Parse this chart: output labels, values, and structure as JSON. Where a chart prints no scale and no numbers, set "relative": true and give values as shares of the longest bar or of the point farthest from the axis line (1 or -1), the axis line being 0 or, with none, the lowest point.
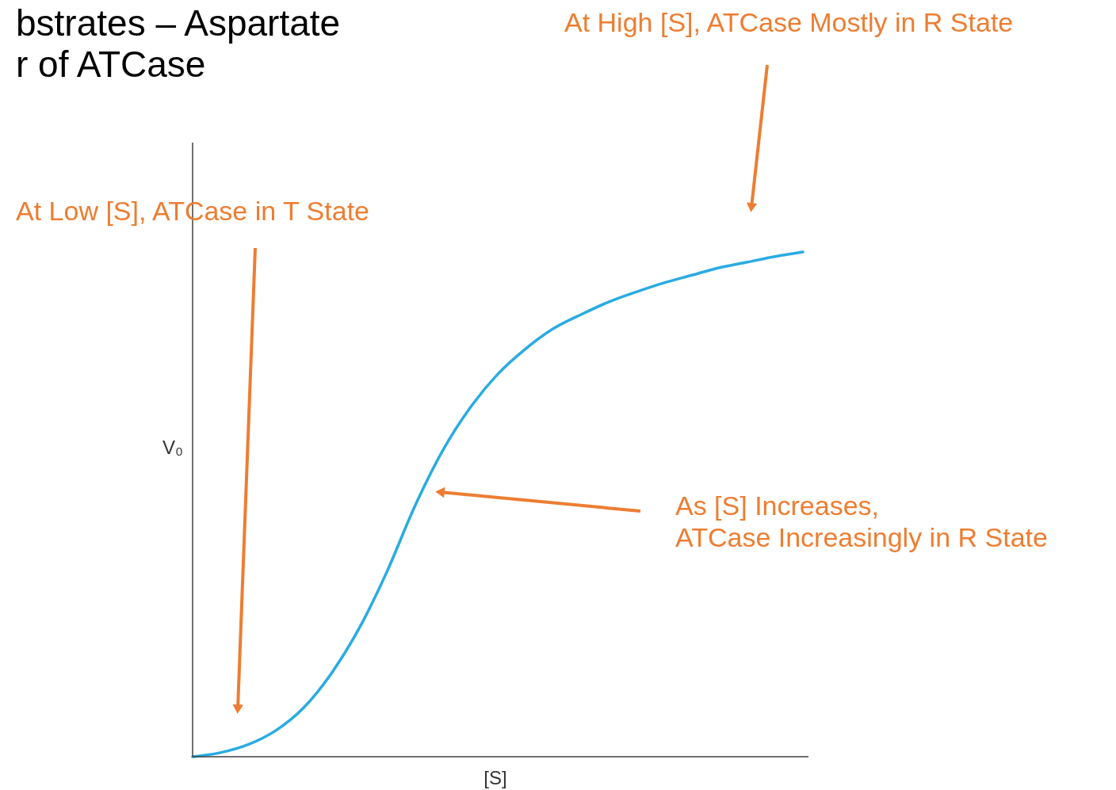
{
  "chart_data": {
    "type": "line",
    "relative": true,
    "title": "bstrates – Aspartate\nr of ATCase",
    "xlabel": "[S]",
    "ylabel": "V₀",
    "color": "#29abe2",
    "categories": [
      null,
      null,
      null,
      null,
      null,
      null,
      null,
      null,
      null,
      null,
      null,
      null,
      null,
      null,
      null,
      null,
      null,
      null,
      null,
      null,
      null,
      null,
      null
    ],
    "values": [
      0,
      0.008,
      0.024,
      0.052,
      0.097,
      0.165,
      0.254,
      0.366,
      0.495,
      0.605,
      0.691,
      0.758,
      0.808,
      0.848,
      0.876,
      0.901,
      0.921,
      0.939,
      0.954,
      0.969,
      0.98,
      0.991,
      1
    ],
    "annotations": [
      "At High [S], ATCase Mostly in R State",
      "At Low [S], ATCase in T State",
      "As [S] Increases,\nATCase Increasingly in R State"
    ]
  }
}
